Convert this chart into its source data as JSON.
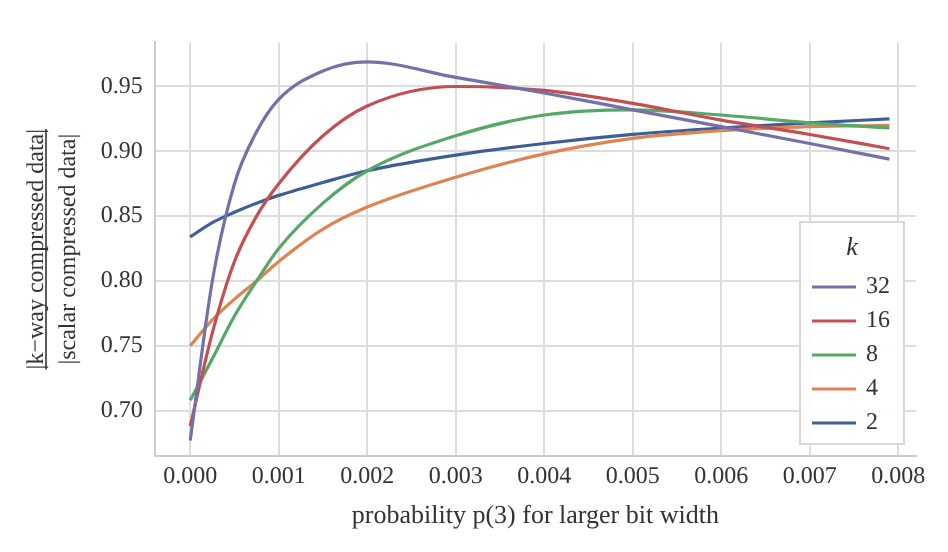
{
  "chart_data": {
    "type": "line",
    "xlabel": "probability p(3) for larger bit width",
    "ylabel": "|k−way compressed data|\n|scalar compressed data|",
    "legend_title": "k",
    "legend": "bottom right",
    "grid": true,
    "marker": "none",
    "line_style": "solid",
    "x": [
      0,
      0.00025,
      0.0005,
      0.00075,
      0.001,
      0.0015,
      0.002,
      0.003,
      0.004,
      0.005,
      0.006,
      0.007,
      0.0079
    ],
    "xlim": [
      -0.0004,
      0.0082
    ],
    "ylim": [
      0.665,
      0.984
    ],
    "xticks": [
      {
        "value": 0,
        "label": "0.000"
      },
      {
        "value": 0.001,
        "label": "0.001"
      },
      {
        "value": 0.002,
        "label": "0.002"
      },
      {
        "value": 0.003,
        "label": "0.003"
      },
      {
        "value": 0.004,
        "label": "0.004"
      },
      {
        "value": 0.005,
        "label": "0.005"
      },
      {
        "value": 0.006,
        "label": "0.006"
      },
      {
        "value": 0.007,
        "label": "0.007"
      },
      {
        "value": 0.008,
        "label": "0.008"
      }
    ],
    "yticks": [
      {
        "value": 0.7,
        "label": "0.70"
      },
      0.75,
      {
        "value": 0.8,
        "label": "0.80"
      },
      0.85,
      {
        "value": 0.9,
        "label": "0.90"
      },
      0.95
    ],
    "series": [
      {
        "name": "32",
        "color": "#7570a8",
        "values": [
          0.677,
          0.8,
          0.875,
          0.915,
          0.94,
          0.962,
          0.969,
          0.957,
          0.945,
          0.932,
          0.919,
          0.906,
          0.894
        ]
      },
      {
        "name": "16",
        "color": "#c44e52",
        "values": [
          0.688,
          0.76,
          0.815,
          0.85,
          0.875,
          0.912,
          0.935,
          0.95,
          0.947,
          0.937,
          0.924,
          0.913,
          0.902
        ]
      },
      {
        "name": "8",
        "color": "#55a868",
        "values": [
          0.708,
          0.74,
          0.773,
          0.8,
          0.825,
          0.86,
          0.885,
          0.912,
          0.928,
          0.932,
          0.928,
          0.922,
          0.918
        ]
      },
      {
        "name": "4",
        "color": "#dd8452",
        "values": [
          0.75,
          0.77,
          0.786,
          0.8,
          0.815,
          0.84,
          0.857,
          0.88,
          0.898,
          0.91,
          0.916,
          0.919,
          0.92
        ]
      },
      {
        "name": "2",
        "color": "#3d5f96",
        "values": [
          0.834,
          0.845,
          0.853,
          0.86,
          0.866,
          0.876,
          0.885,
          0.897,
          0.906,
          0.913,
          0.918,
          0.922,
          0.925
        ]
      }
    ]
  }
}
